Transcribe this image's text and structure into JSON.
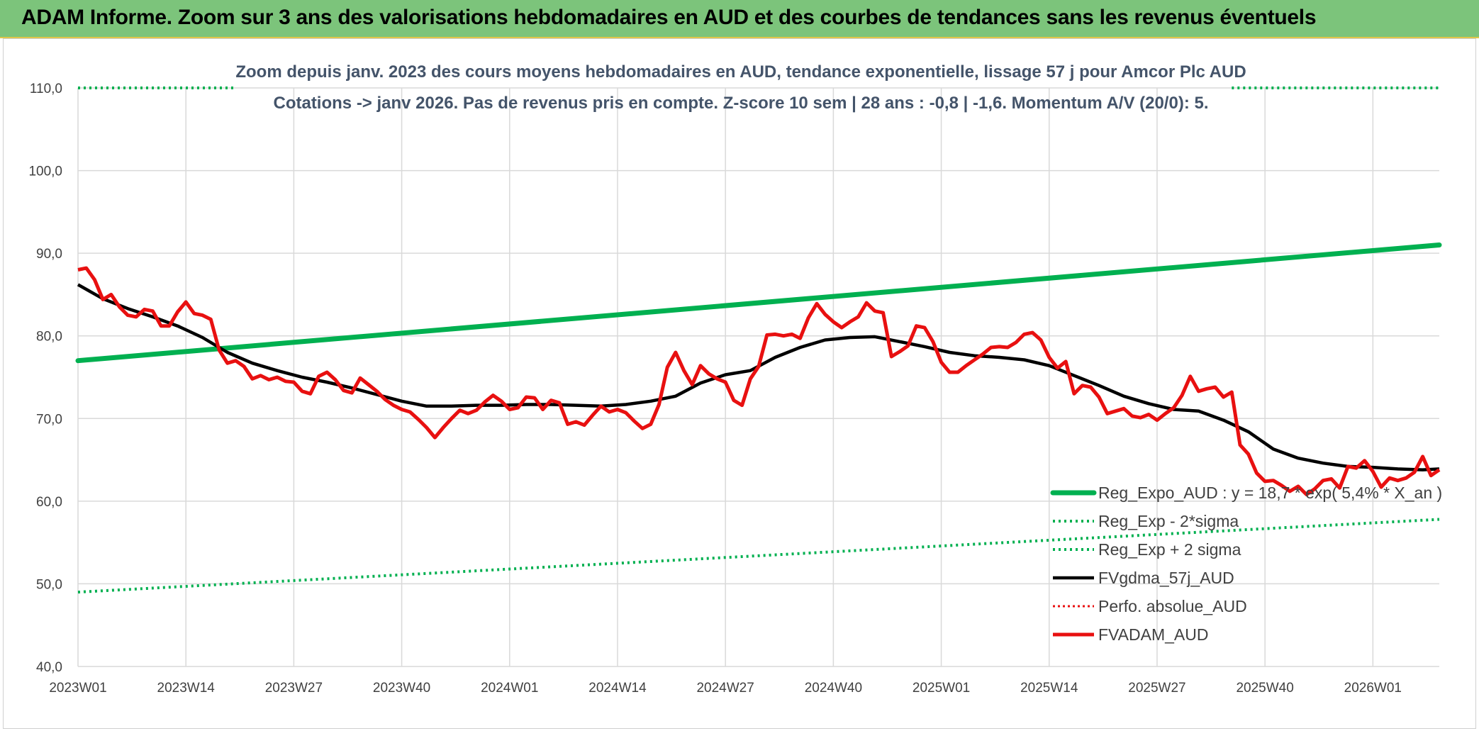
{
  "header": {
    "title": "ADAM Informe. Zoom sur 3 ans des valorisations hebdomadaires en AUD et des courbes de tendances sans les revenus éventuels"
  },
  "chart_data": {
    "type": "line",
    "title": "Zoom depuis janv. 2023 des cours moyens hebdomadaires en AUD, tendance exponentielle, lissage 57 j pour Amcor Plc AUD",
    "subtitle": "Cotations -> janv 2026. Pas de revenus pris en compte. Z-score 10 sem | 28 ans : -0,8 | -1,6. Momentum A/V (20/0): 5.",
    "ylim": [
      40,
      110
    ],
    "yticks": [
      "40,0",
      "50,0",
      "60,0",
      "70,0",
      "80,0",
      "90,0",
      "100,0",
      "110,0"
    ],
    "x_categories": [
      "2023W01",
      "2023W14",
      "2023W27",
      "2023W40",
      "2024W01",
      "2024W14",
      "2024W27",
      "2024W40",
      "2025W01",
      "2025W14",
      "2025W27",
      "2025W40",
      "2026W01"
    ],
    "legend_position": "bottom-right",
    "grid": true,
    "colors": {
      "expo": "#00b050",
      "smooth": "#000000",
      "adam": "#e81010",
      "perfo": "#e81010",
      "grid": "#d9d9d9"
    },
    "series": [
      {
        "name": "Reg_Expo_AUD : y = 18,7 * exp( 5,4% *  X_an )",
        "style": "solid-thick-green",
        "x": [
          0,
          164
        ],
        "y": [
          77.0,
          91.0
        ]
      },
      {
        "name": "Reg_Exp - 2*sigma",
        "style": "dotted-green",
        "x": [
          0,
          164
        ],
        "y": [
          49.0,
          57.8
        ]
      },
      {
        "name": "Reg_Exp + 2 sigma",
        "style": "dotted-green",
        "x": [
          0,
          19,
          139,
          164
        ],
        "y": [
          110.0,
          110.0,
          110.0,
          110.0
        ],
        "visible_ranges": [
          [
            0,
            19
          ],
          [
            139,
            164
          ]
        ]
      },
      {
        "name": "FVgdma_57j_AUD",
        "style": "solid-black",
        "x": [
          0,
          3,
          6,
          9,
          12,
          15,
          18,
          21,
          24,
          27,
          30,
          33,
          36,
          39,
          42,
          45,
          48,
          51,
          54,
          57,
          60,
          63,
          66,
          69,
          72,
          75,
          78,
          81,
          84,
          87,
          90,
          93,
          96,
          99,
          102,
          105,
          108,
          111,
          114,
          117,
          120,
          123,
          126,
          129,
          132,
          135,
          138,
          141,
          144,
          147,
          150,
          153,
          156,
          159,
          162,
          164
        ],
        "y": [
          86.2,
          84.5,
          83.3,
          82.3,
          81.2,
          79.8,
          78.0,
          76.7,
          75.8,
          75.0,
          74.4,
          73.7,
          72.9,
          72.1,
          71.5,
          71.5,
          71.6,
          71.6,
          71.7,
          71.7,
          71.6,
          71.5,
          71.7,
          72.1,
          72.7,
          74.3,
          75.3,
          75.8,
          77.4,
          78.6,
          79.5,
          79.8,
          79.9,
          79.3,
          78.7,
          78.0,
          77.6,
          77.4,
          77.1,
          76.4,
          75.2,
          74.0,
          72.7,
          71.8,
          71.1,
          70.9,
          69.8,
          68.4,
          66.3,
          65.2,
          64.6,
          64.2,
          64.1,
          63.9,
          63.8,
          63.9
        ]
      },
      {
        "name": "Perfo. absolue_AUD",
        "style": "dotted-red",
        "x": [],
        "y": []
      },
      {
        "name": "FVADAM_AUD",
        "style": "solid-red",
        "x": [
          0,
          1,
          2,
          3,
          4,
          5,
          6,
          7,
          8,
          9,
          10,
          11,
          12,
          13,
          14,
          15,
          16,
          17,
          18,
          19,
          20,
          21,
          22,
          23,
          24,
          25,
          26,
          27,
          28,
          29,
          30,
          31,
          32,
          33,
          34,
          35,
          36,
          37,
          38,
          39,
          40,
          41,
          42,
          43,
          44,
          45,
          46,
          47,
          48,
          49,
          50,
          51,
          52,
          53,
          54,
          55,
          56,
          57,
          58,
          59,
          60,
          61,
          62,
          63,
          64,
          65,
          66,
          67,
          68,
          69,
          70,
          71,
          72,
          73,
          74,
          75,
          76,
          77,
          78,
          79,
          80,
          81,
          82,
          83,
          84,
          85,
          86,
          87,
          88,
          89,
          90,
          91,
          92,
          93,
          94,
          95,
          96,
          97,
          98,
          99,
          100,
          101,
          102,
          103,
          104,
          105,
          106,
          107,
          108,
          109,
          110,
          111,
          112,
          113,
          114,
          115,
          116,
          117,
          118,
          119,
          120,
          121,
          122,
          123,
          124,
          125,
          126,
          127,
          128,
          129,
          130,
          131,
          132,
          133,
          134,
          135,
          136,
          137,
          138,
          139,
          140,
          141,
          142,
          143,
          144,
          145,
          146,
          147,
          148,
          149,
          150,
          151,
          152,
          153,
          154,
          155,
          156,
          157,
          158,
          159,
          160,
          161,
          162,
          163,
          164
        ],
        "y": [
          88.0,
          88.2,
          86.8,
          84.4,
          85.0,
          83.5,
          82.5,
          82.3,
          83.2,
          83.0,
          81.2,
          81.2,
          82.9,
          84.1,
          82.7,
          82.5,
          82.0,
          78.3,
          76.7,
          77.0,
          76.3,
          74.8,
          75.2,
          74.7,
          75.0,
          74.5,
          74.4,
          73.3,
          73.0,
          75.1,
          75.6,
          74.7,
          73.4,
          73.1,
          74.9,
          74.1,
          73.3,
          72.3,
          71.6,
          71.1,
          70.8,
          69.9,
          68.9,
          67.7,
          68.9,
          70.0,
          71.0,
          70.6,
          71.0,
          72.0,
          72.8,
          72.1,
          71.1,
          71.3,
          72.6,
          72.5,
          71.1,
          72.2,
          71.9,
          69.3,
          69.6,
          69.2,
          70.4,
          71.5,
          70.8,
          71.1,
          70.7,
          69.7,
          68.8,
          69.3,
          71.7,
          76.2,
          78.0,
          75.8,
          74.1,
          76.4,
          75.4,
          74.8,
          74.4,
          72.2,
          71.6,
          74.8,
          76.3,
          80.1,
          80.2,
          80.0,
          80.2,
          79.7,
          82.2,
          83.9,
          82.6,
          81.7,
          81.0,
          81.7,
          82.3,
          84.0,
          83.0,
          82.8,
          77.5,
          78.1,
          78.8,
          81.2,
          81.0,
          79.3,
          76.8,
          75.6,
          75.6,
          76.4,
          77.1,
          77.8,
          78.6,
          78.7,
          78.6,
          79.2,
          80.2,
          80.4,
          79.5,
          77.4,
          76.1,
          76.9,
          73.0,
          74.0,
          73.8,
          72.6,
          70.6,
          70.9,
          71.2,
          70.3,
          70.1,
          70.5,
          69.8,
          70.6,
          71.3,
          72.8,
          75.1,
          73.3,
          73.6,
          73.8,
          72.6,
          73.2,
          66.8,
          65.7,
          63.4,
          62.4,
          62.5,
          61.9,
          61.2,
          61.8,
          60.8,
          61.5,
          62.5,
          62.7,
          61.6,
          64.2,
          64.0,
          64.9,
          63.6,
          61.7,
          62.8,
          62.5,
          62.8,
          63.5,
          65.4,
          63.1,
          63.8
        ]
      }
    ]
  }
}
